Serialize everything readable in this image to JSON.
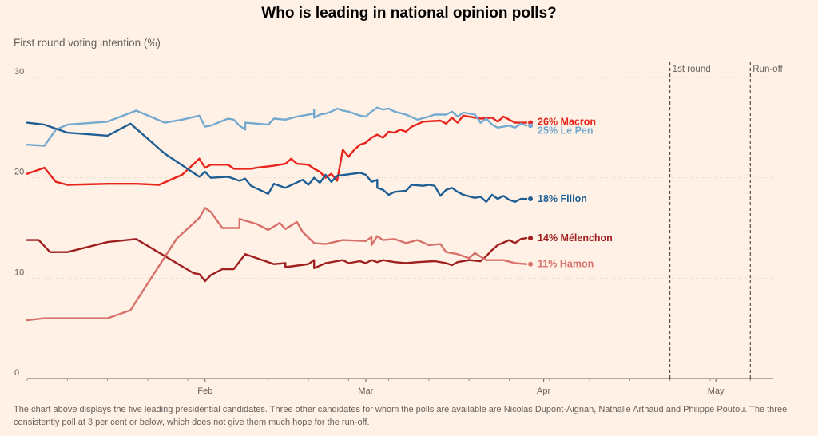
{
  "page": {
    "title": "Who is leading in national opinion polls?",
    "subtitle": "First round voting intention (%)",
    "caption": "The chart above displays the five leading presidential candidates. Three other candidates for whom the polls are available are Nicolas Dupont-Aignan, Nathalie Arthaud and Philippe Poutou. The three consistently poll at 3 per cent or below, which does not give them much hope for the run-off."
  },
  "chart_data": {
    "type": "line",
    "title": "Who is leading in national opinion polls?",
    "ylabel": "First round voting intention (%)",
    "ylim": [
      0,
      30
    ],
    "yticks": [
      0,
      10,
      20,
      30
    ],
    "xlim": [
      "2017-01-01",
      "2017-05-11"
    ],
    "xticks": [
      {
        "date": "2017-02-01",
        "label": "Feb"
      },
      {
        "date": "2017-03-01",
        "label": "Mar"
      },
      {
        "date": "2017-04-01",
        "label": "Apr"
      },
      {
        "date": "2017-05-01",
        "label": "May"
      }
    ],
    "grid": true,
    "events": [
      {
        "date": "2017-04-23",
        "label": "1st round"
      },
      {
        "date": "2017-05-07",
        "label": "Run-off"
      }
    ],
    "series": [
      {
        "name": "Macron",
        "label": "26% Macron",
        "color": "#e8241c",
        "points": [
          [
            "2017-01-01",
            20.4
          ],
          [
            "2017-01-04",
            21.0
          ],
          [
            "2017-01-06",
            19.6
          ],
          [
            "2017-01-08",
            19.3
          ],
          [
            "2017-01-15",
            19.4
          ],
          [
            "2017-01-20",
            19.4
          ],
          [
            "2017-01-24",
            19.3
          ],
          [
            "2017-01-28",
            20.3
          ],
          [
            "2017-01-31",
            21.9
          ],
          [
            "2017-02-01",
            21.0
          ],
          [
            "2017-02-02",
            21.3
          ],
          [
            "2017-02-05",
            21.3
          ],
          [
            "2017-02-06",
            20.9
          ],
          [
            "2017-02-09",
            20.9
          ],
          [
            "2017-02-10",
            21.0
          ],
          [
            "2017-02-13",
            21.2
          ],
          [
            "2017-02-15",
            21.4
          ],
          [
            "2017-02-16",
            21.9
          ],
          [
            "2017-02-17",
            21.4
          ],
          [
            "2017-02-19",
            21.3
          ],
          [
            "2017-02-20",
            20.9
          ],
          [
            "2017-02-21",
            20.6
          ],
          [
            "2017-02-22",
            20.0
          ],
          [
            "2017-02-23",
            20.4
          ],
          [
            "2017-02-24",
            19.7
          ],
          [
            "2017-02-25",
            22.8
          ],
          [
            "2017-02-26",
            22.1
          ],
          [
            "2017-02-27",
            22.8
          ],
          [
            "2017-02-28",
            23.3
          ],
          [
            "2017-03-01",
            23.5
          ],
          [
            "2017-03-02",
            24.0
          ],
          [
            "2017-03-03",
            24.3
          ],
          [
            "2017-03-04",
            24.0
          ],
          [
            "2017-03-05",
            24.6
          ],
          [
            "2017-03-06",
            24.5
          ],
          [
            "2017-03-07",
            24.8
          ],
          [
            "2017-03-08",
            24.6
          ],
          [
            "2017-03-09",
            25.1
          ],
          [
            "2017-03-11",
            25.6
          ],
          [
            "2017-03-14",
            25.7
          ],
          [
            "2017-03-15",
            25.4
          ],
          [
            "2017-03-16",
            26.0
          ],
          [
            "2017-03-17",
            25.5
          ],
          [
            "2017-03-18",
            26.2
          ],
          [
            "2017-03-20",
            26.0
          ],
          [
            "2017-03-21",
            25.9
          ],
          [
            "2017-03-23",
            26.0
          ],
          [
            "2017-03-24",
            25.6
          ],
          [
            "2017-03-25",
            26.1
          ],
          [
            "2017-03-26",
            25.8
          ],
          [
            "2017-03-27",
            25.5
          ],
          [
            "2017-03-29",
            25.5
          ]
        ]
      },
      {
        "name": "Le Pen",
        "label": "25% Le Pen",
        "color": "#74a9cf",
        "points": [
          [
            "2017-01-01",
            23.3
          ],
          [
            "2017-01-04",
            23.2
          ],
          [
            "2017-01-06",
            24.8
          ],
          [
            "2017-01-08",
            25.3
          ],
          [
            "2017-01-15",
            25.6
          ],
          [
            "2017-01-20",
            26.7
          ],
          [
            "2017-01-25",
            25.5
          ],
          [
            "2017-01-28",
            25.8
          ],
          [
            "2017-01-31",
            26.2
          ],
          [
            "2017-02-01",
            25.1
          ],
          [
            "2017-02-02",
            25.2
          ],
          [
            "2017-02-05",
            25.9
          ],
          [
            "2017-02-06",
            25.8
          ],
          [
            "2017-02-07",
            25.2
          ],
          [
            "2017-02-08",
            24.8
          ],
          [
            "2017-02-08",
            25.5
          ],
          [
            "2017-02-10",
            25.4
          ],
          [
            "2017-02-12",
            25.3
          ],
          [
            "2017-02-13",
            25.9
          ],
          [
            "2017-02-15",
            25.8
          ],
          [
            "2017-02-17",
            26.1
          ],
          [
            "2017-02-18",
            26.2
          ],
          [
            "2017-02-20",
            26.4
          ],
          [
            "2017-02-20",
            26.8
          ],
          [
            "2017-02-20",
            26.0
          ],
          [
            "2017-02-21",
            26.3
          ],
          [
            "2017-02-22",
            26.4
          ],
          [
            "2017-02-23",
            26.6
          ],
          [
            "2017-02-24",
            26.9
          ],
          [
            "2017-02-25",
            26.7
          ],
          [
            "2017-02-26",
            26.6
          ],
          [
            "2017-02-28",
            26.2
          ],
          [
            "2017-03-01",
            26.1
          ],
          [
            "2017-03-02",
            26.6
          ],
          [
            "2017-03-03",
            27.0
          ],
          [
            "2017-03-04",
            26.8
          ],
          [
            "2017-03-05",
            26.9
          ],
          [
            "2017-03-06",
            26.6
          ],
          [
            "2017-03-08",
            26.3
          ],
          [
            "2017-03-10",
            25.8
          ],
          [
            "2017-03-12",
            26.1
          ],
          [
            "2017-03-13",
            26.3
          ],
          [
            "2017-03-15",
            26.3
          ],
          [
            "2017-03-16",
            26.6
          ],
          [
            "2017-03-17",
            26.1
          ],
          [
            "2017-03-18",
            26.5
          ],
          [
            "2017-03-20",
            26.3
          ],
          [
            "2017-03-21",
            25.5
          ],
          [
            "2017-03-22",
            25.9
          ],
          [
            "2017-03-23",
            25.3
          ],
          [
            "2017-03-24",
            25.0
          ],
          [
            "2017-03-26",
            25.2
          ],
          [
            "2017-03-27",
            25.0
          ],
          [
            "2017-03-28",
            25.4
          ],
          [
            "2017-03-29",
            25.2
          ]
        ]
      },
      {
        "name": "Fillon",
        "label": "18% Fillon",
        "color": "#1f5e93",
        "points": [
          [
            "2017-01-01",
            25.5
          ],
          [
            "2017-01-04",
            25.3
          ],
          [
            "2017-01-08",
            24.5
          ],
          [
            "2017-01-15",
            24.2
          ],
          [
            "2017-01-19",
            25.4
          ],
          [
            "2017-01-25",
            22.4
          ],
          [
            "2017-01-31",
            20.1
          ],
          [
            "2017-02-01",
            20.6
          ],
          [
            "2017-02-02",
            20.0
          ],
          [
            "2017-02-05",
            20.1
          ],
          [
            "2017-02-07",
            19.7
          ],
          [
            "2017-02-08",
            19.9
          ],
          [
            "2017-02-09",
            19.2
          ],
          [
            "2017-02-12",
            18.4
          ],
          [
            "2017-02-13",
            19.4
          ],
          [
            "2017-02-15",
            19.0
          ],
          [
            "2017-02-18",
            19.8
          ],
          [
            "2017-02-19",
            19.3
          ],
          [
            "2017-02-20",
            20.0
          ],
          [
            "2017-02-21",
            19.5
          ],
          [
            "2017-02-22",
            20.3
          ],
          [
            "2017-02-23",
            19.6
          ],
          [
            "2017-02-24",
            20.2
          ],
          [
            "2017-02-28",
            20.5
          ],
          [
            "2017-03-01",
            20.3
          ],
          [
            "2017-03-02",
            19.6
          ],
          [
            "2017-03-03",
            19.8
          ],
          [
            "2017-03-03",
            19.0
          ],
          [
            "2017-03-04",
            18.8
          ],
          [
            "2017-03-05",
            18.3
          ],
          [
            "2017-03-06",
            18.6
          ],
          [
            "2017-03-08",
            18.7
          ],
          [
            "2017-03-09",
            19.3
          ],
          [
            "2017-03-11",
            19.2
          ],
          [
            "2017-03-12",
            19.3
          ],
          [
            "2017-03-13",
            19.2
          ],
          [
            "2017-03-14",
            18.2
          ],
          [
            "2017-03-15",
            18.8
          ],
          [
            "2017-03-16",
            19.0
          ],
          [
            "2017-03-17",
            18.6
          ],
          [
            "2017-03-18",
            18.3
          ],
          [
            "2017-03-20",
            18.0
          ],
          [
            "2017-03-21",
            18.1
          ],
          [
            "2017-03-22",
            17.6
          ],
          [
            "2017-03-23",
            18.3
          ],
          [
            "2017-03-24",
            17.9
          ],
          [
            "2017-03-25",
            18.2
          ],
          [
            "2017-03-26",
            17.8
          ],
          [
            "2017-03-27",
            17.6
          ],
          [
            "2017-03-28",
            17.9
          ],
          [
            "2017-03-29",
            17.9
          ]
        ]
      },
      {
        "name": "Mélenchon",
        "label": "14% Mélenchon",
        "color": "#9e2020",
        "points": [
          [
            "2017-01-01",
            13.8
          ],
          [
            "2017-01-03",
            13.8
          ],
          [
            "2017-01-05",
            12.6
          ],
          [
            "2017-01-08",
            12.6
          ],
          [
            "2017-01-15",
            13.6
          ],
          [
            "2017-01-20",
            13.9
          ],
          [
            "2017-01-30",
            10.5
          ],
          [
            "2017-01-31",
            10.4
          ],
          [
            "2017-02-01",
            9.7
          ],
          [
            "2017-02-02",
            10.3
          ],
          [
            "2017-02-04",
            10.9
          ],
          [
            "2017-02-06",
            10.9
          ],
          [
            "2017-02-08",
            12.4
          ],
          [
            "2017-02-10",
            12.0
          ],
          [
            "2017-02-13",
            11.4
          ],
          [
            "2017-02-15",
            11.5
          ],
          [
            "2017-02-15",
            11.1
          ],
          [
            "2017-02-19",
            11.4
          ],
          [
            "2017-02-20",
            11.8
          ],
          [
            "2017-02-20",
            11.0
          ],
          [
            "2017-02-22",
            11.5
          ],
          [
            "2017-02-25",
            11.8
          ],
          [
            "2017-02-26",
            11.5
          ],
          [
            "2017-02-28",
            11.7
          ],
          [
            "2017-03-01",
            11.5
          ],
          [
            "2017-03-02",
            11.8
          ],
          [
            "2017-03-03",
            11.6
          ],
          [
            "2017-03-04",
            11.8
          ],
          [
            "2017-03-06",
            11.6
          ],
          [
            "2017-03-08",
            11.5
          ],
          [
            "2017-03-10",
            11.6
          ],
          [
            "2017-03-13",
            11.7
          ],
          [
            "2017-03-15",
            11.5
          ],
          [
            "2017-03-16",
            11.3
          ],
          [
            "2017-03-17",
            11.6
          ],
          [
            "2017-03-19",
            11.8
          ],
          [
            "2017-03-21",
            11.7
          ],
          [
            "2017-03-22",
            12.2
          ],
          [
            "2017-03-23",
            12.8
          ],
          [
            "2017-03-24",
            13.3
          ],
          [
            "2017-03-26",
            13.8
          ],
          [
            "2017-03-27",
            13.5
          ],
          [
            "2017-03-28",
            13.9
          ],
          [
            "2017-03-29",
            14.0
          ]
        ]
      },
      {
        "name": "Hamon",
        "label": "11% Hamon",
        "color": "#d6726b",
        "points": [
          [
            "2017-01-01",
            5.8
          ],
          [
            "2017-01-04",
            6.0
          ],
          [
            "2017-01-15",
            6.0
          ],
          [
            "2017-01-19",
            6.8
          ],
          [
            "2017-01-27",
            13.9
          ],
          [
            "2017-01-31",
            16.0
          ],
          [
            "2017-02-01",
            17.0
          ],
          [
            "2017-02-02",
            16.6
          ],
          [
            "2017-02-04",
            15.0
          ],
          [
            "2017-02-07",
            15.0
          ],
          [
            "2017-02-07",
            15.9
          ],
          [
            "2017-02-10",
            15.4
          ],
          [
            "2017-02-12",
            14.8
          ],
          [
            "2017-02-14",
            15.5
          ],
          [
            "2017-02-15",
            14.9
          ],
          [
            "2017-02-17",
            15.6
          ],
          [
            "2017-02-18",
            14.6
          ],
          [
            "2017-02-20",
            13.5
          ],
          [
            "2017-02-22",
            13.4
          ],
          [
            "2017-02-25",
            13.8
          ],
          [
            "2017-03-01",
            13.7
          ],
          [
            "2017-03-02",
            14.1
          ],
          [
            "2017-03-02",
            13.3
          ],
          [
            "2017-03-03",
            14.2
          ],
          [
            "2017-03-04",
            13.8
          ],
          [
            "2017-03-06",
            13.9
          ],
          [
            "2017-03-08",
            13.5
          ],
          [
            "2017-03-10",
            13.8
          ],
          [
            "2017-03-12",
            13.3
          ],
          [
            "2017-03-14",
            13.4
          ],
          [
            "2017-03-15",
            12.6
          ],
          [
            "2017-03-17",
            12.4
          ],
          [
            "2017-03-19",
            12.0
          ],
          [
            "2017-03-20",
            12.5
          ],
          [
            "2017-03-22",
            11.8
          ],
          [
            "2017-03-25",
            11.8
          ],
          [
            "2017-03-27",
            11.5
          ],
          [
            "2017-03-29",
            11.4
          ]
        ]
      }
    ]
  }
}
